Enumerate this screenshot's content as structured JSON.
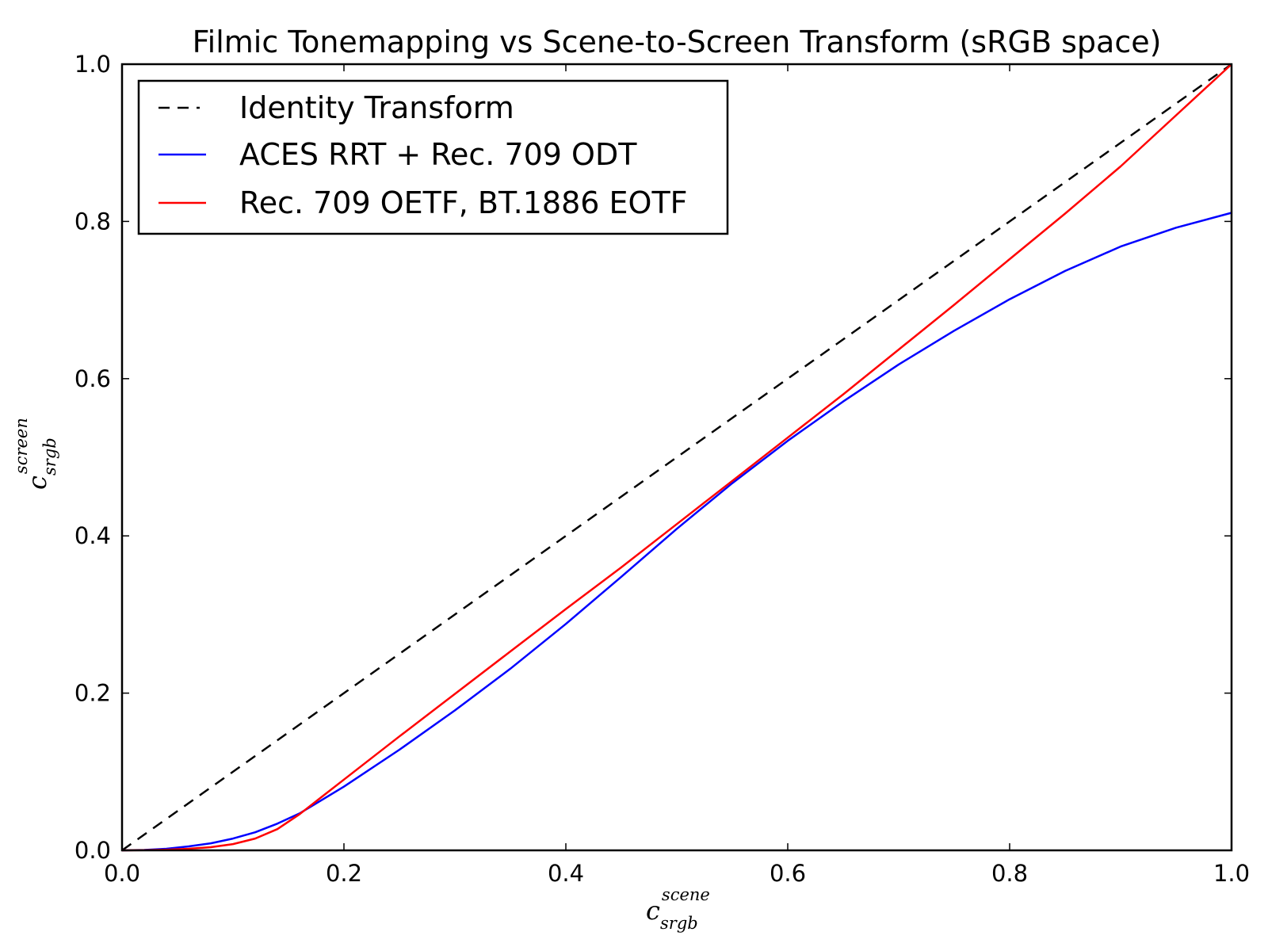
{
  "chart_data": {
    "type": "line",
    "title": "Filmic Tonemapping vs Scene-to-Screen Transform (sRGB space)",
    "xlabel": {
      "base": "c",
      "superscript": "scene",
      "subscript": "srgb"
    },
    "ylabel": {
      "base": "c",
      "superscript": "screen",
      "subscript": "srgb"
    },
    "xlim": [
      0.0,
      1.0
    ],
    "ylim": [
      0.0,
      1.0
    ],
    "xticks": [
      "0.0",
      "0.2",
      "0.4",
      "0.6",
      "0.8",
      "1.0"
    ],
    "yticks": [
      "0.0",
      "0.2",
      "0.4",
      "0.6",
      "0.8",
      "1.0"
    ],
    "grid": false,
    "legend_position": "upper-left",
    "series": [
      {
        "name": "Identity Transform",
        "color": "#000000",
        "dash": "dashed",
        "x": [
          0.0,
          1.0
        ],
        "y": [
          0.0,
          1.0
        ]
      },
      {
        "name": "ACES RRT + Rec. 709 ODT",
        "color": "#0000ff",
        "dash": "solid",
        "x": [
          0.0,
          0.02,
          0.04,
          0.06,
          0.08,
          0.1,
          0.12,
          0.14,
          0.16,
          0.2,
          0.25,
          0.3,
          0.35,
          0.4,
          0.45,
          0.5,
          0.55,
          0.6,
          0.65,
          0.7,
          0.75,
          0.8,
          0.85,
          0.9,
          0.95,
          1.0
        ],
        "y": [
          0.0,
          0.0005,
          0.002,
          0.005,
          0.009,
          0.015,
          0.023,
          0.034,
          0.047,
          0.081,
          0.128,
          0.178,
          0.231,
          0.288,
          0.348,
          0.409,
          0.467,
          0.521,
          0.571,
          0.618,
          0.661,
          0.701,
          0.737,
          0.768,
          0.792,
          0.811
        ]
      },
      {
        "name": "Rec. 709 OETF, BT.1886 EOTF",
        "color": "#ff0000",
        "dash": "solid",
        "x": [
          0.0,
          0.02,
          0.04,
          0.06,
          0.08,
          0.1,
          0.12,
          0.14,
          0.16,
          0.18,
          0.2,
          0.25,
          0.3,
          0.35,
          0.4,
          0.45,
          0.5,
          0.55,
          0.6,
          0.65,
          0.7,
          0.75,
          0.8,
          0.85,
          0.9,
          0.95,
          1.0
        ],
        "y": [
          0.0,
          0.0002,
          0.0008,
          0.002,
          0.004,
          0.008,
          0.015,
          0.027,
          0.046,
          0.068,
          0.09,
          0.145,
          0.199,
          0.253,
          0.307,
          0.36,
          0.415,
          0.47,
          0.525,
          0.58,
          0.637,
          0.694,
          0.752,
          0.81,
          0.87,
          0.935,
          1.0
        ]
      }
    ]
  }
}
